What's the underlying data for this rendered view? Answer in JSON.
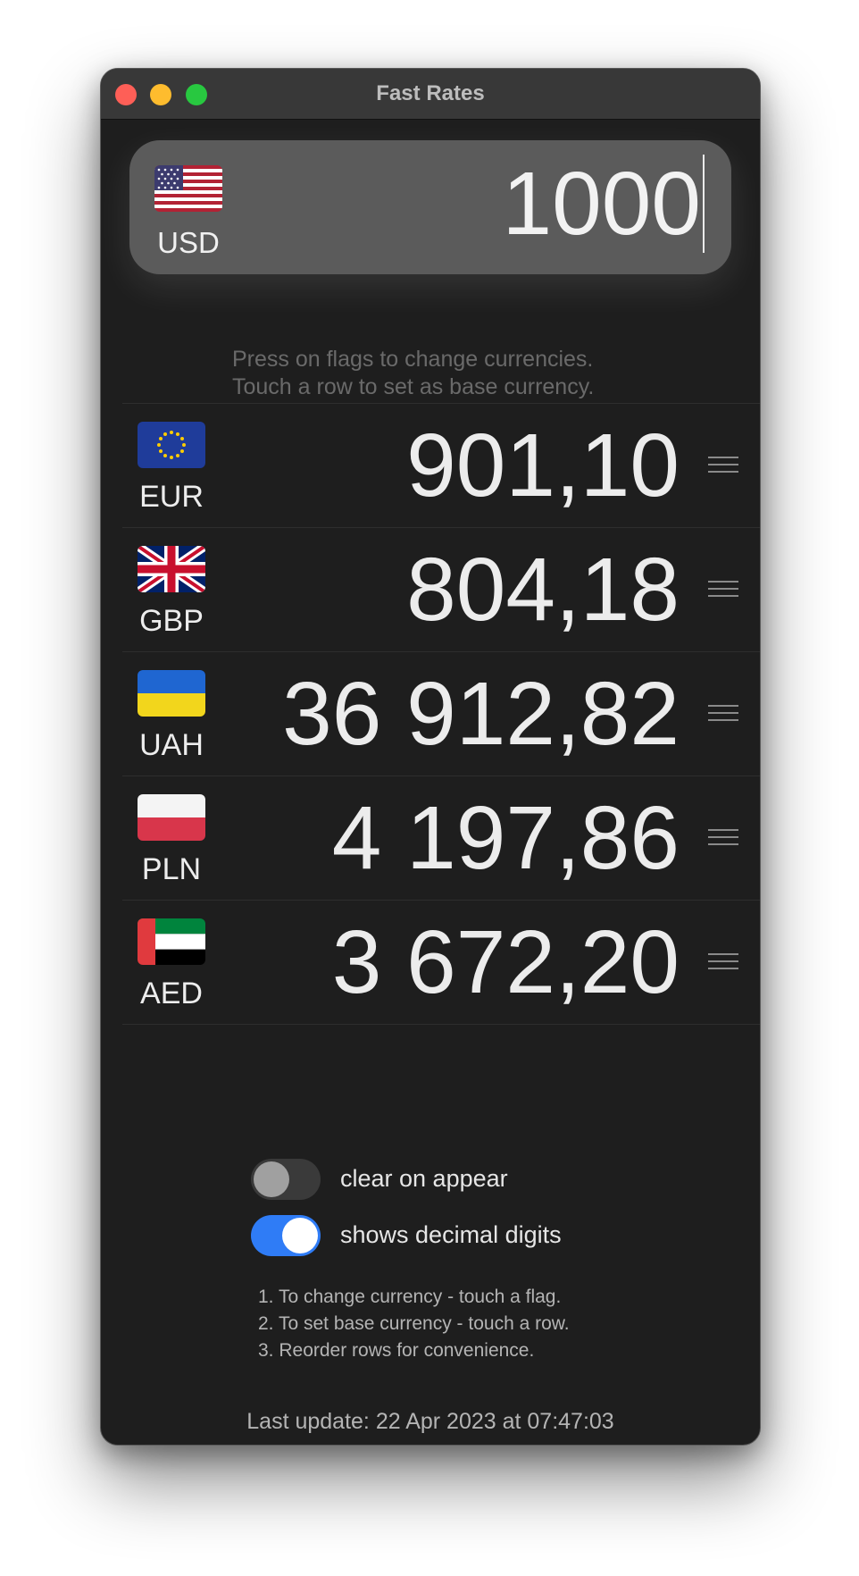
{
  "window": {
    "title": "Fast Rates"
  },
  "base": {
    "flag_icon": "us-flag-icon",
    "code": "USD",
    "amount": "1000"
  },
  "hint": {
    "line1": "Press on flags to change currencies.",
    "line2": "Touch a row to set as base currency."
  },
  "rates": [
    {
      "flag_icon": "eu-flag-icon",
      "code": "EUR",
      "value": "901,10"
    },
    {
      "flag_icon": "gb-flag-icon",
      "code": "GBP",
      "value": "804,18"
    },
    {
      "flag_icon": "ua-flag-icon",
      "code": "UAH",
      "value": "36 912,82"
    },
    {
      "flag_icon": "pl-flag-icon",
      "code": "PLN",
      "value": "4 197,86"
    },
    {
      "flag_icon": "ae-flag-icon",
      "code": "AED",
      "value": "3 672,20"
    }
  ],
  "settings": {
    "clear_on_appear": {
      "label": "clear on appear",
      "enabled": false
    },
    "shows_decimal_digits": {
      "label": "shows decimal digits",
      "enabled": true
    }
  },
  "instructions": [
    "1. To change currency - touch a flag.",
    "2. To set base currency - touch a row.",
    "3. Reorder rows for convenience."
  ],
  "last_update": "Last update: 22 Apr 2023 at 07:47:03",
  "colors": {
    "window_bg": "#1e1e1e",
    "base_box_bg": "#5b5b5b",
    "toggle_on": "#2f7cf6",
    "toggle_off": "#3a3a3a"
  }
}
